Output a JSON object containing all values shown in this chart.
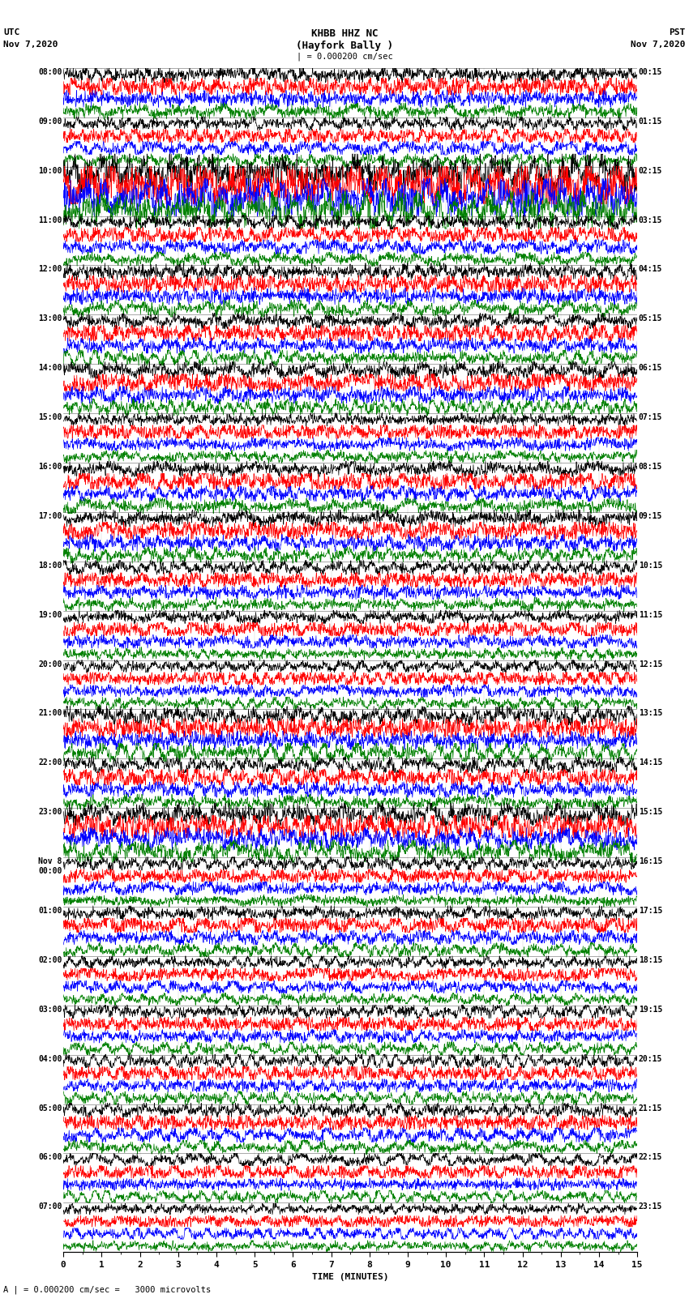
{
  "title_line1": "KHBB HHZ NC",
  "title_line2": "(Hayfork Bally )",
  "scale_label": "| = 0.000200 cm/sec",
  "utc_label": "UTC\nNov 7,2020",
  "pst_label": "PST\nNov 7,2020",
  "xlabel": "TIME (MINUTES)",
  "bottom_label": "A | = 0.000200 cm/sec =   3000 microvolts",
  "left_times": [
    "08:00",
    "09:00",
    "10:00",
    "11:00",
    "12:00",
    "13:00",
    "14:00",
    "15:00",
    "16:00",
    "17:00",
    "18:00",
    "19:00",
    "20:00",
    "21:00",
    "22:00",
    "23:00",
    "Nov 8\n00:00",
    "01:00",
    "02:00",
    "03:00",
    "04:00",
    "05:00",
    "06:00",
    "07:00"
  ],
  "right_times": [
    "00:15",
    "01:15",
    "02:15",
    "03:15",
    "04:15",
    "05:15",
    "06:15",
    "07:15",
    "08:15",
    "09:15",
    "10:15",
    "11:15",
    "12:15",
    "13:15",
    "14:15",
    "15:15",
    "16:15",
    "17:15",
    "18:15",
    "19:15",
    "20:15",
    "21:15",
    "22:15",
    "23:15"
  ],
  "colors": [
    "black",
    "red",
    "blue",
    "green"
  ],
  "num_hours": 24,
  "traces_per_hour": 4,
  "x_min": 0,
  "x_max": 15,
  "background_color": "white",
  "fig_width": 8.5,
  "fig_height": 16.13,
  "dpi": 100
}
